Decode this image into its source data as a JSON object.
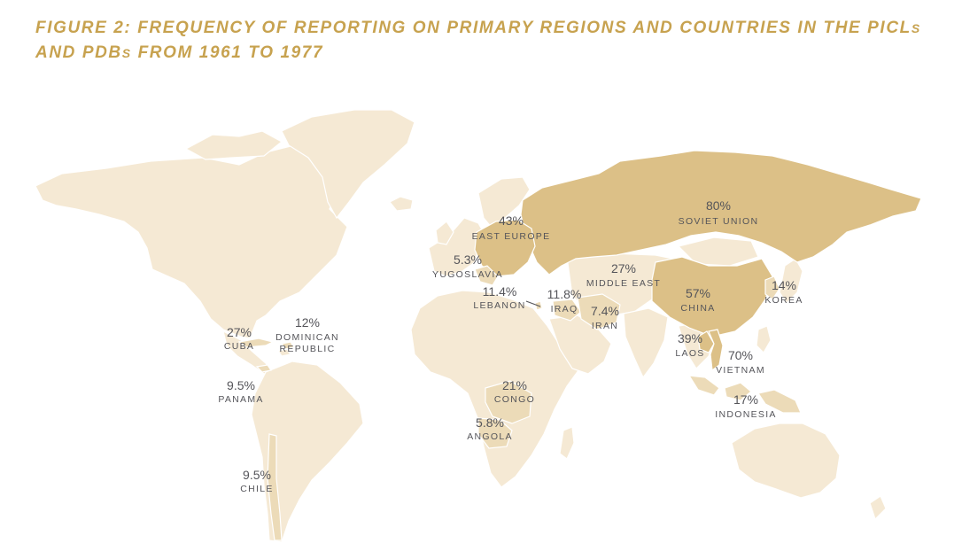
{
  "title": {
    "line1_main": "Figure 2: Frequency of reporting on primary regions and countries in the PICL",
    "line1_small": "s",
    "line2_main": "and PDB",
    "line2_small": "s",
    "line2_rest": " from 1961 to 1977"
  },
  "colors": {
    "title": "#c7a24f",
    "land": "#f5e9d4",
    "medium": "#ecdbb8",
    "high": "#dcc087",
    "label": "#55555a"
  },
  "regions": {
    "soviet_union": {
      "pct": "80%",
      "name": "SOVIET UNION",
      "value": 80
    },
    "vietnam": {
      "pct": "70%",
      "name": "VIETNAM",
      "value": 70
    },
    "china": {
      "pct": "57%",
      "name": "CHINA",
      "value": 57
    },
    "east_europe": {
      "pct": "43%",
      "name": "EAST EUROPE",
      "value": 43
    },
    "laos": {
      "pct": "39%",
      "name": "LAOS",
      "value": 39
    },
    "middle_east": {
      "pct": "27%",
      "name": "MIDDLE EAST",
      "value": 27
    },
    "cuba": {
      "pct": "27%",
      "name": "CUBA",
      "value": 27
    },
    "congo": {
      "pct": "21%",
      "name": "CONGO",
      "value": 21
    },
    "indonesia": {
      "pct": "17%",
      "name": "INDONESIA",
      "value": 17
    },
    "korea": {
      "pct": "14%",
      "name": "KOREA",
      "value": 14
    },
    "dominican_republic": {
      "pct": "12%",
      "name_line1": "DOMINICAN",
      "name_line2": "REPUBLIC",
      "value": 12
    },
    "iraq": {
      "pct": "11.8%",
      "name": "IRAQ",
      "value": 11.8
    },
    "lebanon": {
      "pct": "11.4%",
      "name": "LEBANON",
      "value": 11.4
    },
    "panama": {
      "pct": "9.5%",
      "name": "PANAMA",
      "value": 9.5
    },
    "chile": {
      "pct": "9.5%",
      "name": "CHILE",
      "value": 9.5
    },
    "iran": {
      "pct": "7.4%",
      "name": "IRAN",
      "value": 7.4
    },
    "angola": {
      "pct": "5.8%",
      "name": "ANGOLA",
      "value": 5.8
    },
    "yugoslavia": {
      "pct": "5.3%",
      "name": "YUGOSLAVIA",
      "value": 5.3
    }
  }
}
